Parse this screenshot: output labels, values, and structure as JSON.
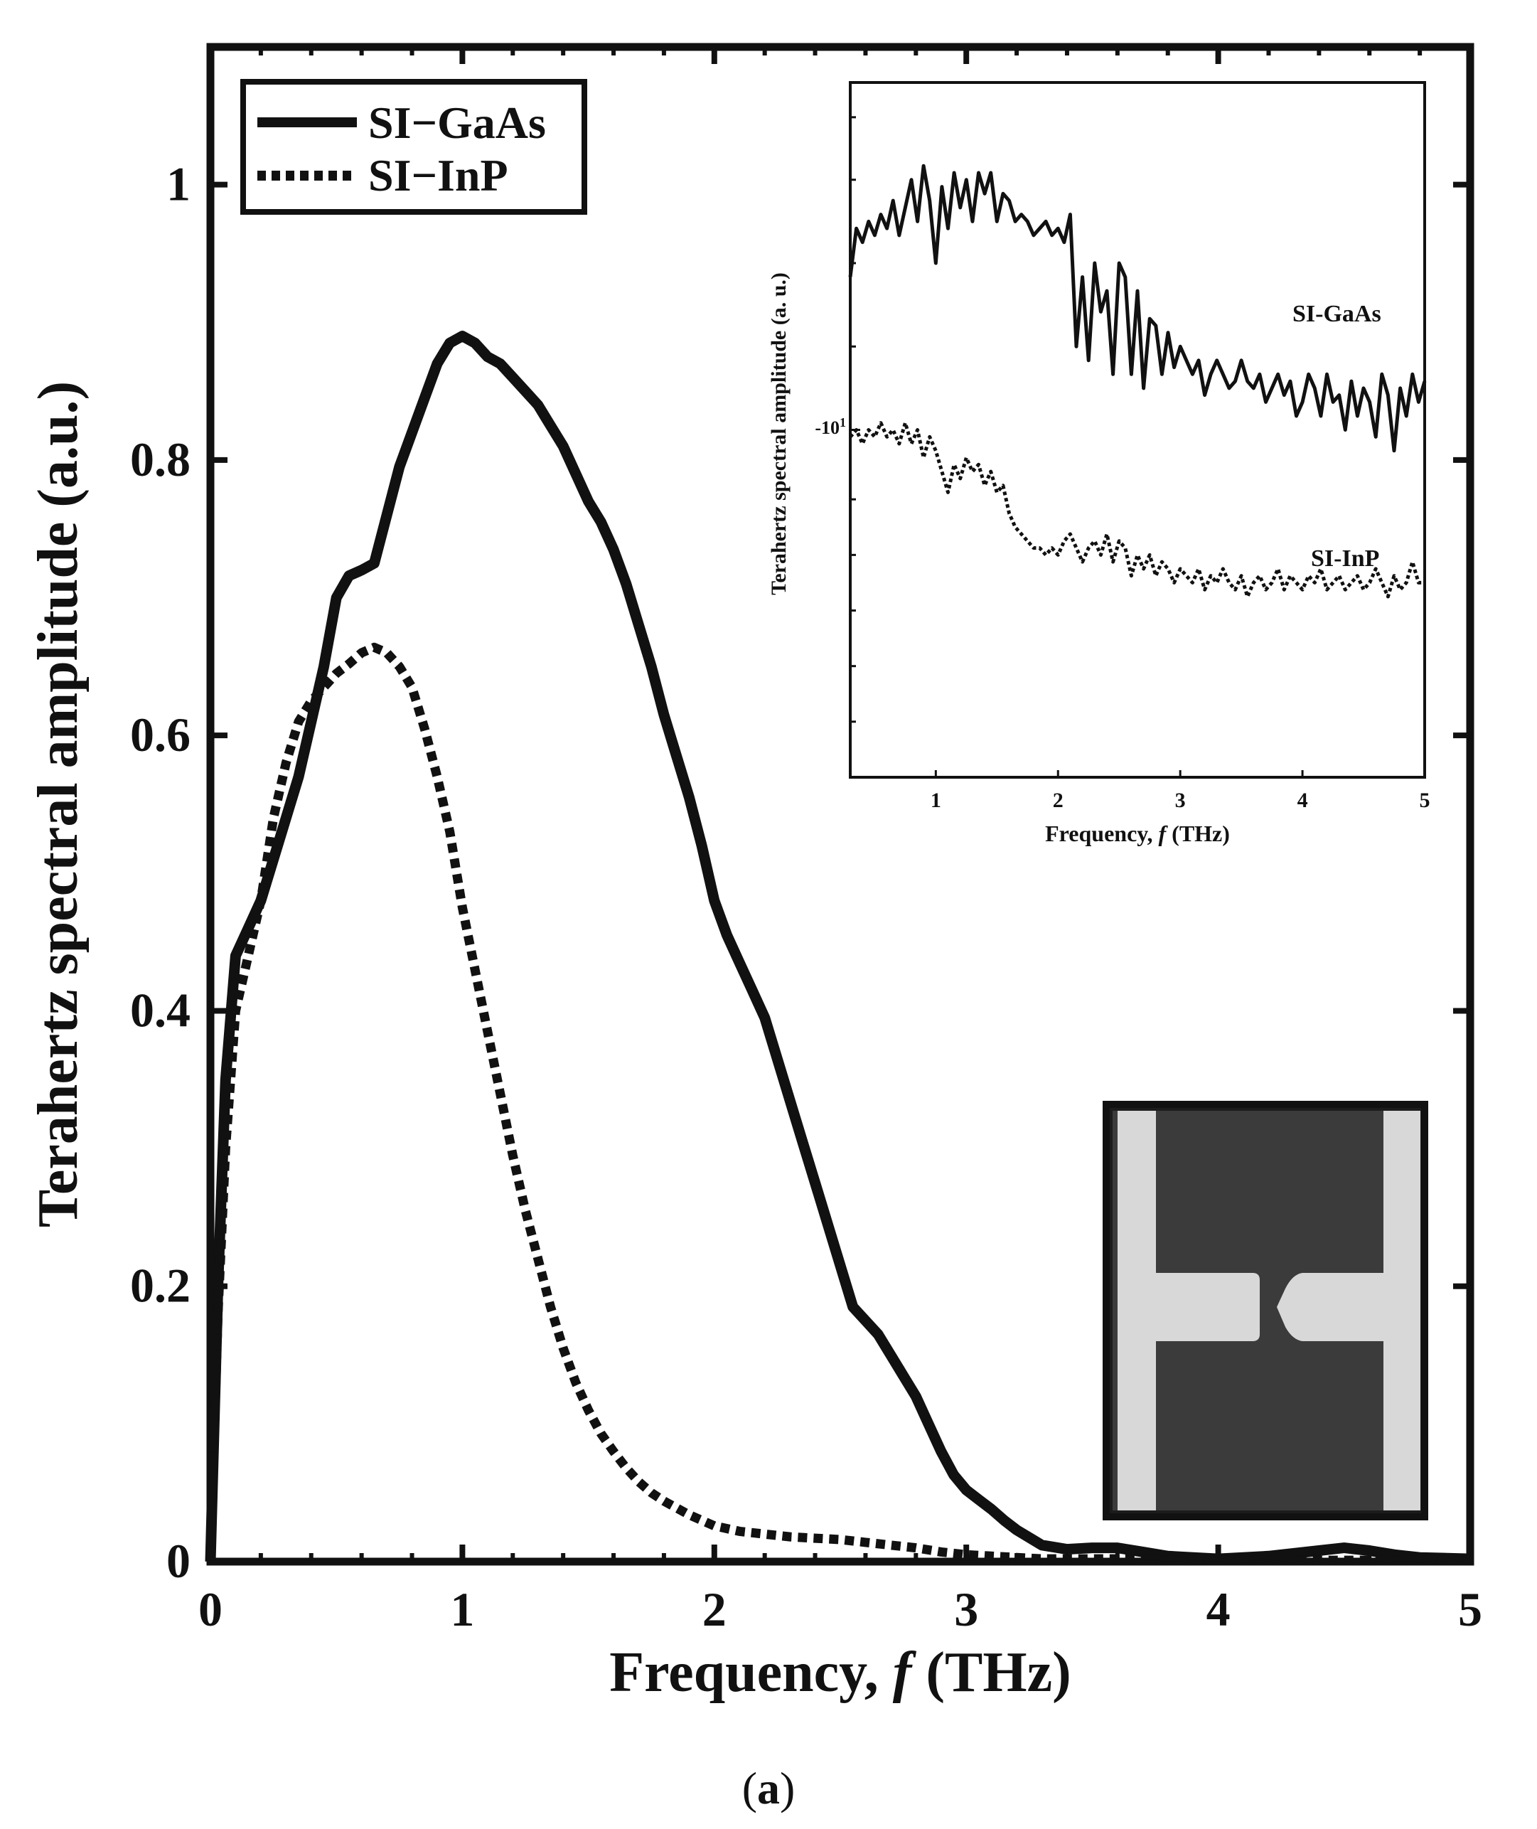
{
  "caption": {
    "open": "(",
    "letter": "a",
    "close": ")"
  },
  "colors": {
    "ink": "#111111",
    "photo_dark": "#3b3b3b",
    "photo_light": "#d8d8d8"
  },
  "chart_data": [
    {
      "type": "line",
      "title": "",
      "xlabel_main": "Frequency, ",
      "xlabel_italic": "f",
      "xlabel_unit": " (THz)",
      "ylabel": "Terahertz spectral amplitude (a.u.)",
      "xlim": [
        0,
        5
      ],
      "ylim": [
        0,
        1.1
      ],
      "xticks": [
        0,
        1,
        2,
        3,
        4,
        5
      ],
      "xtick_labels": [
        "0",
        "1",
        "2",
        "3",
        "4",
        "5"
      ],
      "yticks": [
        0,
        0.2,
        0.4,
        0.6,
        0.8,
        1
      ],
      "ytick_labels": [
        "0",
        "0.2",
        "0.4",
        "0.6",
        "0.8",
        "1"
      ],
      "legend_position": "top-left",
      "series": [
        {
          "name": "SI−GaAs",
          "style": "solid",
          "x": [
            0,
            0.03,
            0.06,
            0.1,
            0.15,
            0.2,
            0.25,
            0.3,
            0.35,
            0.4,
            0.45,
            0.5,
            0.55,
            0.6,
            0.65,
            0.7,
            0.75,
            0.8,
            0.85,
            0.9,
            0.95,
            1.0,
            1.05,
            1.1,
            1.15,
            1.2,
            1.25,
            1.3,
            1.35,
            1.4,
            1.45,
            1.5,
            1.55,
            1.6,
            1.65,
            1.7,
            1.75,
            1.8,
            1.85,
            1.9,
            1.95,
            2.0,
            2.05,
            2.1,
            2.15,
            2.2,
            2.25,
            2.3,
            2.35,
            2.4,
            2.45,
            2.5,
            2.55,
            2.6,
            2.65,
            2.7,
            2.75,
            2.8,
            2.85,
            2.9,
            2.95,
            3.0,
            3.05,
            3.1,
            3.15,
            3.2,
            3.3,
            3.4,
            3.5,
            3.6,
            3.7,
            3.8,
            3.9,
            4.0,
            4.2,
            4.4,
            4.5,
            4.6,
            4.7,
            4.8,
            5.0
          ],
          "values": [
            0.0,
            0.2,
            0.35,
            0.44,
            0.46,
            0.48,
            0.51,
            0.54,
            0.57,
            0.61,
            0.65,
            0.7,
            0.716,
            0.72,
            0.725,
            0.76,
            0.795,
            0.82,
            0.845,
            0.87,
            0.885,
            0.89,
            0.885,
            0.875,
            0.87,
            0.86,
            0.85,
            0.84,
            0.825,
            0.81,
            0.79,
            0.77,
            0.755,
            0.735,
            0.71,
            0.68,
            0.65,
            0.615,
            0.585,
            0.555,
            0.52,
            0.48,
            0.455,
            0.435,
            0.415,
            0.395,
            0.365,
            0.335,
            0.305,
            0.275,
            0.245,
            0.215,
            0.185,
            0.175,
            0.165,
            0.15,
            0.135,
            0.12,
            0.1,
            0.08,
            0.063,
            0.052,
            0.045,
            0.038,
            0.03,
            0.023,
            0.012,
            0.009,
            0.01,
            0.01,
            0.007,
            0.004,
            0.003,
            0.002,
            0.004,
            0.008,
            0.01,
            0.008,
            0.005,
            0.003,
            0.002
          ]
        },
        {
          "name": "SI−InP",
          "style": "dotted",
          "x": [
            0,
            0.03,
            0.06,
            0.1,
            0.15,
            0.2,
            0.25,
            0.3,
            0.35,
            0.4,
            0.45,
            0.5,
            0.55,
            0.6,
            0.65,
            0.7,
            0.75,
            0.8,
            0.85,
            0.9,
            0.95,
            1.0,
            1.05,
            1.1,
            1.15,
            1.2,
            1.25,
            1.3,
            1.35,
            1.4,
            1.45,
            1.5,
            1.55,
            1.6,
            1.65,
            1.7,
            1.75,
            1.8,
            1.85,
            1.9,
            1.95,
            2.0,
            2.1,
            2.2,
            2.3,
            2.4,
            2.5,
            2.6,
            2.7,
            2.8,
            2.9,
            3.0,
            3.1,
            3.2,
            3.3,
            3.4,
            3.5,
            3.6,
            3.7,
            3.8,
            3.9,
            4.0,
            4.2,
            4.4,
            4.6,
            4.8,
            5.0
          ],
          "values": [
            0.0,
            0.18,
            0.3,
            0.4,
            0.44,
            0.48,
            0.54,
            0.58,
            0.61,
            0.625,
            0.635,
            0.645,
            0.652,
            0.66,
            0.664,
            0.66,
            0.65,
            0.635,
            0.605,
            0.57,
            0.53,
            0.475,
            0.43,
            0.385,
            0.34,
            0.295,
            0.255,
            0.22,
            0.185,
            0.155,
            0.13,
            0.11,
            0.093,
            0.08,
            0.068,
            0.058,
            0.05,
            0.044,
            0.039,
            0.034,
            0.03,
            0.026,
            0.022,
            0.02,
            0.018,
            0.017,
            0.016,
            0.014,
            0.012,
            0.01,
            0.007,
            0.005,
            0.004,
            0.003,
            0.002,
            0.002,
            0.002,
            0.002,
            0.002,
            0.001,
            0.001,
            0.001,
            0.001,
            0.001,
            0.001,
            0.001,
            0.001
          ]
        }
      ]
    },
    {
      "type": "line",
      "title": "",
      "xlabel_main": "Frequency, ",
      "xlabel_italic": "f",
      "xlabel_unit": " (THz)",
      "ylabel": "Terahertz spectral amplitude (a. u.)",
      "xlim": [
        0.3,
        5
      ],
      "ylim": [
        0,
        1
      ],
      "y_scale": "log (relative, unlabeled except one tick)",
      "xticks": [
        1,
        2,
        3,
        4,
        5
      ],
      "xtick_labels": [
        "1",
        "2",
        "3",
        "4",
        "5"
      ],
      "ytick_label_base": "-10",
      "ytick_label_exp": "1",
      "ytick_label_position": 0.5,
      "series": [
        {
          "name": "SI-GaAs",
          "style": "solid",
          "x": [
            0.3,
            0.35,
            0.4,
            0.45,
            0.5,
            0.55,
            0.6,
            0.65,
            0.7,
            0.75,
            0.8,
            0.85,
            0.9,
            0.95,
            1.0,
            1.05,
            1.1,
            1.15,
            1.2,
            1.25,
            1.3,
            1.35,
            1.4,
            1.45,
            1.5,
            1.55,
            1.6,
            1.65,
            1.7,
            1.75,
            1.8,
            1.85,
            1.9,
            1.95,
            2.0,
            2.05,
            2.1,
            2.15,
            2.2,
            2.25,
            2.3,
            2.35,
            2.4,
            2.45,
            2.5,
            2.55,
            2.6,
            2.65,
            2.7,
            2.75,
            2.8,
            2.85,
            2.9,
            2.95,
            3.0,
            3.05,
            3.1,
            3.15,
            3.2,
            3.25,
            3.3,
            3.35,
            3.4,
            3.45,
            3.5,
            3.55,
            3.6,
            3.65,
            3.7,
            3.75,
            3.8,
            3.85,
            3.9,
            3.95,
            4.0,
            4.05,
            4.1,
            4.15,
            4.2,
            4.25,
            4.3,
            4.35,
            4.4,
            4.45,
            4.5,
            4.55,
            4.6,
            4.65,
            4.7,
            4.75,
            4.8,
            4.85,
            4.9,
            4.95,
            5.0
          ],
          "values": [
            0.72,
            0.79,
            0.77,
            0.8,
            0.78,
            0.81,
            0.79,
            0.83,
            0.78,
            0.82,
            0.86,
            0.8,
            0.88,
            0.83,
            0.74,
            0.85,
            0.79,
            0.87,
            0.82,
            0.86,
            0.8,
            0.87,
            0.84,
            0.87,
            0.8,
            0.84,
            0.83,
            0.8,
            0.81,
            0.8,
            0.78,
            0.79,
            0.8,
            0.78,
            0.79,
            0.77,
            0.81,
            0.62,
            0.72,
            0.6,
            0.74,
            0.67,
            0.7,
            0.58,
            0.74,
            0.72,
            0.58,
            0.7,
            0.56,
            0.66,
            0.65,
            0.58,
            0.64,
            0.59,
            0.62,
            0.6,
            0.58,
            0.6,
            0.55,
            0.58,
            0.6,
            0.58,
            0.56,
            0.57,
            0.6,
            0.57,
            0.56,
            0.58,
            0.54,
            0.56,
            0.58,
            0.55,
            0.57,
            0.52,
            0.54,
            0.58,
            0.56,
            0.52,
            0.58,
            0.54,
            0.55,
            0.5,
            0.57,
            0.52,
            0.56,
            0.54,
            0.49,
            0.58,
            0.55,
            0.47,
            0.56,
            0.52,
            0.58,
            0.54,
            0.57
          ]
        },
        {
          "name": "SI-InP",
          "style": "dotted",
          "x": [
            0.3,
            0.35,
            0.4,
            0.45,
            0.5,
            0.55,
            0.6,
            0.65,
            0.7,
            0.75,
            0.8,
            0.85,
            0.9,
            0.95,
            1.0,
            1.05,
            1.1,
            1.15,
            1.2,
            1.25,
            1.3,
            1.35,
            1.4,
            1.45,
            1.5,
            1.55,
            1.6,
            1.65,
            1.7,
            1.75,
            1.8,
            1.85,
            1.9,
            1.95,
            2.0,
            2.05,
            2.1,
            2.15,
            2.2,
            2.25,
            2.3,
            2.35,
            2.4,
            2.45,
            2.5,
            2.55,
            2.6,
            2.65,
            2.7,
            2.75,
            2.8,
            2.85,
            2.9,
            2.95,
            3.0,
            3.05,
            3.1,
            3.15,
            3.2,
            3.25,
            3.3,
            3.35,
            3.4,
            3.45,
            3.5,
            3.55,
            3.6,
            3.65,
            3.7,
            3.75,
            3.8,
            3.85,
            3.9,
            3.95,
            4.0,
            4.05,
            4.1,
            4.15,
            4.2,
            4.25,
            4.3,
            4.35,
            4.4,
            4.45,
            4.5,
            4.55,
            4.6,
            4.65,
            4.7,
            4.75,
            4.8,
            4.85,
            4.9,
            4.95,
            5.0
          ],
          "values": [
            0.49,
            0.5,
            0.48,
            0.5,
            0.49,
            0.51,
            0.49,
            0.5,
            0.48,
            0.51,
            0.48,
            0.5,
            0.46,
            0.49,
            0.47,
            0.44,
            0.41,
            0.45,
            0.43,
            0.46,
            0.44,
            0.45,
            0.42,
            0.44,
            0.41,
            0.42,
            0.38,
            0.36,
            0.35,
            0.34,
            0.33,
            0.33,
            0.32,
            0.33,
            0.32,
            0.34,
            0.35,
            0.33,
            0.31,
            0.33,
            0.34,
            0.32,
            0.35,
            0.31,
            0.34,
            0.33,
            0.29,
            0.32,
            0.3,
            0.32,
            0.29,
            0.31,
            0.3,
            0.28,
            0.3,
            0.29,
            0.28,
            0.3,
            0.27,
            0.29,
            0.28,
            0.3,
            0.28,
            0.27,
            0.29,
            0.26,
            0.28,
            0.29,
            0.27,
            0.28,
            0.3,
            0.27,
            0.29,
            0.28,
            0.27,
            0.29,
            0.28,
            0.3,
            0.27,
            0.28,
            0.29,
            0.27,
            0.28,
            0.29,
            0.27,
            0.28,
            0.3,
            0.28,
            0.26,
            0.29,
            0.27,
            0.28,
            0.31,
            0.28,
            0.28
          ]
        }
      ]
    }
  ]
}
